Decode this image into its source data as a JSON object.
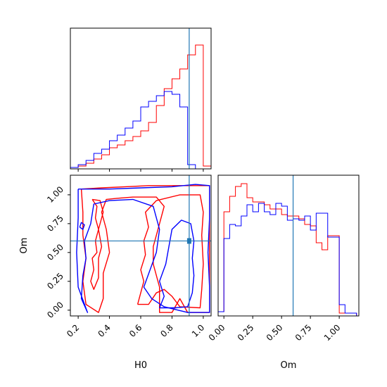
{
  "figure": {
    "type": "corner-plot"
  },
  "colors": {
    "series_a": "#ff0000",
    "series_b": "#0000ff",
    "truth": "#1f77b4",
    "axis": "#000000"
  },
  "chart_data": [
    {
      "type": "histogram",
      "panel": "H0-marginal",
      "xlim": [
        0.15,
        1.05
      ],
      "xticks": [
        0.2,
        0.4,
        0.6,
        0.8,
        1.0
      ],
      "ylim": [
        0,
        1.0
      ],
      "truth_x": 0.91,
      "bin_edges": [
        0.15,
        0.2,
        0.25,
        0.3,
        0.35,
        0.4,
        0.45,
        0.5,
        0.55,
        0.6,
        0.65,
        0.7,
        0.75,
        0.8,
        0.85,
        0.9,
        0.95,
        1.0,
        1.05
      ],
      "series": [
        {
          "values": [
            0.01,
            0.02,
            0.04,
            0.07,
            0.1,
            0.15,
            0.17,
            0.2,
            0.23,
            0.27,
            0.33,
            0.45,
            0.57,
            0.64,
            0.71,
            0.81,
            0.88,
            0.02
          ]
        },
        {
          "values": [
            0.01,
            0.03,
            0.06,
            0.11,
            0.14,
            0.2,
            0.24,
            0.29,
            0.34,
            0.44,
            0.48,
            0.52,
            0.55,
            0.53,
            0.44,
            0.03,
            0.0,
            0.0
          ]
        }
      ]
    },
    {
      "type": "contour",
      "panel": "H0-Om-joint",
      "xlabel": "H0",
      "ylabel": "Om",
      "xlim": [
        0.15,
        1.05
      ],
      "ylim": [
        -0.05,
        1.17
      ],
      "xticks": [
        0.2,
        0.4,
        0.6,
        0.8,
        1.0
      ],
      "yticks": [
        0.0,
        0.25,
        0.5,
        0.75,
        1.0
      ],
      "xtick_labels": [
        "0.2",
        "0.4",
        "0.6",
        "0.8",
        "1.0"
      ],
      "ytick_labels": [
        "0.00",
        "0.25",
        "0.50",
        "0.75",
        "1.00"
      ],
      "truth": [
        0.91,
        0.6
      ],
      "series": [
        {
          "contours": [
            [
              [
                0.22,
                1.05
              ],
              [
                0.35,
                1.06
              ],
              [
                0.5,
                1.07
              ],
              [
                0.65,
                1.08
              ],
              [
                0.8,
                1.08
              ],
              [
                0.95,
                1.08
              ],
              [
                1.04,
                1.08
              ],
              [
                1.04,
                0.8
              ],
              [
                1.04,
                0.5
              ],
              [
                1.04,
                0.2
              ],
              [
                1.04,
                -0.02
              ],
              [
                0.9,
                -0.02
              ],
              [
                0.85,
                0.1
              ],
              [
                0.8,
                -0.02
              ],
              [
                0.72,
                -0.02
              ],
              [
                0.72,
                0.2
              ],
              [
                0.68,
                0.4
              ],
              [
                0.68,
                0.55
              ],
              [
                0.72,
                0.75
              ],
              [
                0.75,
                0.9
              ],
              [
                0.7,
                0.98
              ],
              [
                0.55,
                0.98
              ],
              [
                0.45,
                0.97
              ],
              [
                0.38,
                0.96
              ],
              [
                0.35,
                0.85
              ],
              [
                0.38,
                0.7
              ],
              [
                0.4,
                0.5
              ],
              [
                0.36,
                0.32
              ],
              [
                0.36,
                0.1
              ],
              [
                0.33,
                -0.02
              ],
              [
                0.25,
                0.05
              ],
              [
                0.23,
                0.25
              ],
              [
                0.25,
                0.45
              ],
              [
                0.23,
                0.65
              ],
              [
                0.23,
                0.85
              ],
              [
                0.22,
                1.05
              ]
            ],
            [
              [
                0.58,
                0.05
              ],
              [
                0.6,
                0.15
              ],
              [
                0.62,
                0.25
              ],
              [
                0.6,
                0.35
              ],
              [
                0.63,
                0.48
              ],
              [
                0.62,
                0.6
              ],
              [
                0.65,
                0.72
              ],
              [
                0.63,
                0.85
              ],
              [
                0.7,
                0.95
              ],
              [
                0.85,
                1.0
              ],
              [
                0.98,
                1.0
              ],
              [
                1.0,
                0.85
              ],
              [
                0.99,
                0.65
              ],
              [
                1.0,
                0.4
              ],
              [
                0.99,
                0.18
              ],
              [
                0.98,
                0.02
              ],
              [
                0.85,
                0.03
              ],
              [
                0.8,
                0.12
              ],
              [
                0.75,
                0.18
              ],
              [
                0.7,
                0.15
              ],
              [
                0.65,
                0.05
              ],
              [
                0.58,
                0.05
              ]
            ],
            [
              [
                0.29,
                0.96
              ],
              [
                0.32,
                0.9
              ],
              [
                0.31,
                0.8
              ],
              [
                0.33,
                0.7
              ],
              [
                0.31,
                0.6
              ],
              [
                0.32,
                0.5
              ],
              [
                0.29,
                0.45
              ],
              [
                0.3,
                0.35
              ],
              [
                0.28,
                0.25
              ],
              [
                0.3,
                0.18
              ],
              [
                0.33,
                0.28
              ],
              [
                0.33,
                0.45
              ],
              [
                0.35,
                0.55
              ],
              [
                0.33,
                0.7
              ],
              [
                0.36,
                0.85
              ],
              [
                0.34,
                0.95
              ],
              [
                0.29,
                0.96
              ]
            ]
          ]
        },
        {
          "contours": [
            [
              [
                0.2,
                1.05
              ],
              [
                0.4,
                1.05
              ],
              [
                0.6,
                1.06
              ],
              [
                0.8,
                1.07
              ],
              [
                0.95,
                1.09
              ],
              [
                1.04,
                1.08
              ],
              [
                1.04,
                0.8
              ],
              [
                1.03,
                0.5
              ],
              [
                1.04,
                0.2
              ],
              [
                1.04,
                -0.02
              ],
              [
                0.9,
                -0.02
              ],
              [
                0.75,
                0.03
              ],
              [
                0.67,
                0.1
              ],
              [
                0.62,
                0.2
              ],
              [
                0.66,
                0.35
              ],
              [
                0.7,
                0.5
              ],
              [
                0.72,
                0.7
              ],
              [
                0.68,
                0.9
              ],
              [
                0.55,
                0.96
              ],
              [
                0.4,
                0.95
              ],
              [
                0.3,
                0.92
              ],
              [
                0.28,
                0.75
              ],
              [
                0.24,
                0.6
              ],
              [
                0.25,
                0.45
              ],
              [
                0.23,
                0.3
              ],
              [
                0.22,
                0.1
              ],
              [
                0.26,
                -0.02
              ],
              [
                0.2,
                0.2
              ],
              [
                0.19,
                0.5
              ],
              [
                0.2,
                0.8
              ],
              [
                0.2,
                1.05
              ]
            ],
            [
              [
                0.72,
                0.02
              ],
              [
                0.75,
                0.12
              ],
              [
                0.72,
                0.25
              ],
              [
                0.76,
                0.4
              ],
              [
                0.78,
                0.55
              ],
              [
                0.8,
                0.7
              ],
              [
                0.86,
                0.78
              ],
              [
                0.92,
                0.75
              ],
              [
                0.94,
                0.6
              ],
              [
                0.93,
                0.45
              ],
              [
                0.94,
                0.3
              ],
              [
                0.93,
                0.15
              ],
              [
                0.9,
                0.03
              ],
              [
                0.82,
                0.02
              ],
              [
                0.72,
                0.02
              ]
            ],
            [
              [
                0.21,
                0.72
              ],
              [
                0.23,
                0.7
              ],
              [
                0.24,
                0.74
              ],
              [
                0.22,
                0.76
              ],
              [
                0.21,
                0.72
              ]
            ]
          ]
        }
      ]
    },
    {
      "type": "histogram",
      "panel": "Om-marginal",
      "xlabel": "Om",
      "xlim": [
        -0.05,
        1.17
      ],
      "xticks": [
        0.0,
        0.25,
        0.5,
        0.75,
        1.0
      ],
      "xtick_labels": [
        "0.00",
        "0.25",
        "0.50",
        "0.75",
        "1.00"
      ],
      "ylim": [
        0,
        1.0
      ],
      "truth_x": 0.6,
      "bin_edges": [
        -0.05,
        0.0,
        0.05,
        0.1,
        0.15,
        0.2,
        0.25,
        0.3,
        0.35,
        0.4,
        0.45,
        0.5,
        0.55,
        0.6,
        0.65,
        0.7,
        0.75,
        0.8,
        0.85,
        0.9,
        0.95,
        1.0,
        1.05,
        1.1,
        1.15
      ],
      "series": [
        {
          "values": [
            0.03,
            0.74,
            0.85,
            0.92,
            0.94,
            0.84,
            0.81,
            0.81,
            0.79,
            0.76,
            0.76,
            0.72,
            0.71,
            0.71,
            0.69,
            0.65,
            0.64,
            0.52,
            0.47,
            0.57,
            0.57,
            0.02,
            0.02,
            0.02
          ]
        },
        {
          "values": [
            0.03,
            0.55,
            0.65,
            0.64,
            0.71,
            0.79,
            0.74,
            0.8,
            0.74,
            0.72,
            0.8,
            0.78,
            0.68,
            0.69,
            0.68,
            0.71,
            0.61,
            0.73,
            0.73,
            0.56,
            0.56,
            0.08,
            0.02,
            0.02
          ]
        }
      ]
    }
  ]
}
